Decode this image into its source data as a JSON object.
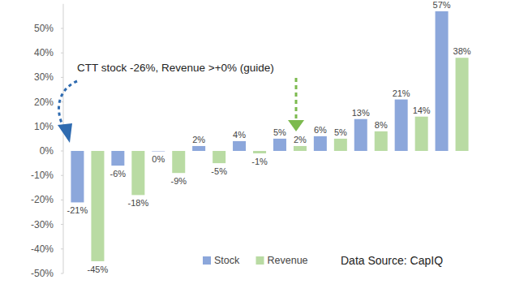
{
  "chart_data": {
    "type": "bar",
    "categories": [
      null,
      null,
      null,
      null,
      null,
      null,
      null,
      null,
      null,
      null
    ],
    "series": [
      {
        "name": "Stock",
        "color": "#8ca7db",
        "values": [
          -21,
          -6,
          0,
          2,
          4,
          5,
          6,
          13,
          21,
          57
        ],
        "value_labels": [
          "-21%",
          "-6%",
          "0%",
          "2%",
          "4%",
          "5%",
          "6%",
          "13%",
          "21%",
          "57%"
        ]
      },
      {
        "name": "Revenue",
        "color": "#b9dba3",
        "values": [
          -45,
          -18,
          -9,
          -5,
          -1,
          2,
          5,
          8,
          14,
          38
        ],
        "value_labels": [
          "-45%",
          "-18%",
          "-9%",
          "-5%",
          "-1%",
          "2%",
          "5%",
          "8%",
          "14%",
          "38%"
        ]
      }
    ],
    "ylim": [
      -50,
      60
    ],
    "yticks": [
      {
        "value": -50,
        "label": "-50%"
      },
      {
        "value": -40,
        "label": "-40%"
      },
      {
        "value": -30,
        "label": "-30%"
      },
      {
        "value": -20,
        "label": "-20%"
      },
      {
        "value": -10,
        "label": "-10%"
      },
      {
        "value": 0,
        "label": "0%"
      },
      {
        "value": 10,
        "label": "10%"
      },
      {
        "value": 20,
        "label": "20%"
      },
      {
        "value": 30,
        "label": "30%"
      },
      {
        "value": 40,
        "label": "40%"
      },
      {
        "value": 50,
        "label": "50%"
      }
    ],
    "annotations": [
      "CTT stock -26%, Revenue >+0% (guide)",
      "Data Source: CapIQ"
    ],
    "grid": false,
    "legend": "lower right",
    "data_labels": true,
    "tick_labels": "y"
  }
}
